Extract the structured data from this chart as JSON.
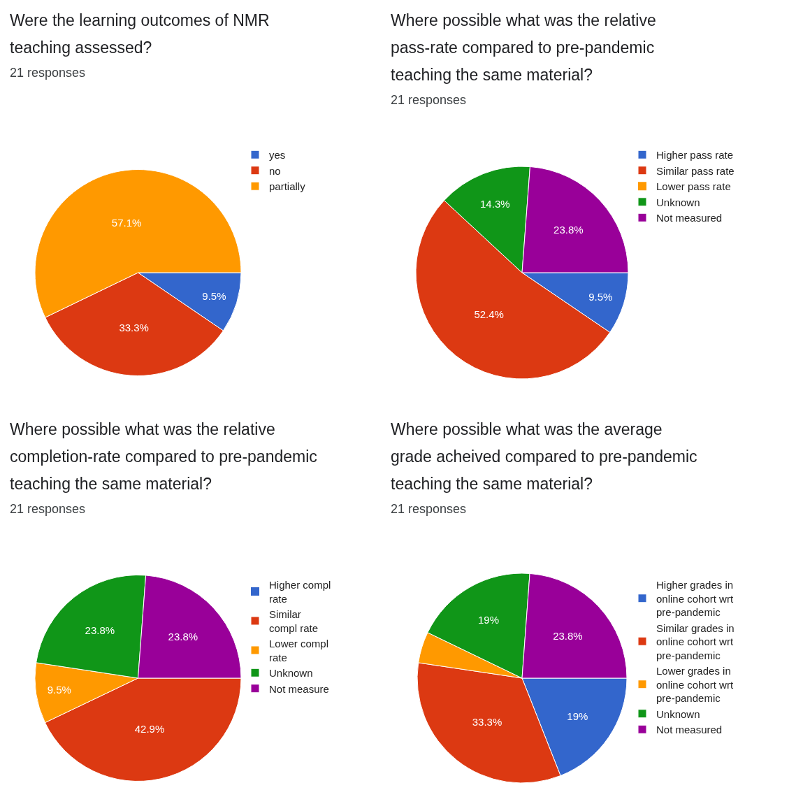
{
  "chart_data": [
    {
      "type": "pie",
      "title": "Were the learning outcomes of NMR teaching assessed?",
      "subtitle": "21 responses",
      "categories": [
        "yes",
        "no",
        "partially"
      ],
      "values": [
        9.5,
        33.3,
        57.1
      ],
      "colors": [
        "#3366cc",
        "#dc3912",
        "#ff9900"
      ],
      "value_labels": [
        "9.5%",
        "33.3%",
        "57.1%"
      ],
      "legend": "right"
    },
    {
      "type": "pie",
      "title": "Where possible what was the relative pass-rate compared to pre-pandemic teaching the same material?",
      "subtitle": "21 responses",
      "categories": [
        "Higher pass rate",
        "Similar pass rate",
        "Lower pass rate",
        "Unknown",
        "Not measured"
      ],
      "values": [
        9.5,
        52.4,
        0,
        14.3,
        23.8
      ],
      "colors": [
        "#3366cc",
        "#dc3912",
        "#ff9900",
        "#109618",
        "#990099"
      ],
      "value_labels": [
        "9.5%",
        "52.4%",
        null,
        "14.3%",
        "23.8%"
      ],
      "legend": "right"
    },
    {
      "type": "pie",
      "title": "Where possible what was the relative completion-rate compared to pre-pandemic teaching the same material?",
      "subtitle": "21 responses",
      "categories": [
        "Higher compl rate",
        "Similar compl rate",
        "Lower compl rate",
        "Unknown",
        "Not measure"
      ],
      "values": [
        0,
        42.9,
        9.5,
        23.8,
        23.8
      ],
      "colors": [
        "#3366cc",
        "#dc3912",
        "#ff9900",
        "#109618",
        "#990099"
      ],
      "value_labels": [
        null,
        "42.9%",
        "9.5%",
        "23.8%",
        "23.8%"
      ],
      "legend": "right"
    },
    {
      "type": "pie",
      "title": "Where possible what was the average grade acheived compared to pre-pandemic teaching the same material?",
      "subtitle": "21 responses",
      "categories": [
        "Higher grades in online cohort wrt pre-pandemic",
        "Similar grades in online cohort wrt pre-pandemic",
        "Lower grades in online cohort wrt pre-pandemic",
        "Unknown",
        "Not measured"
      ],
      "values": [
        19,
        33.3,
        4.8,
        19,
        23.8
      ],
      "colors": [
        "#3366cc",
        "#dc3912",
        "#ff9900",
        "#109618",
        "#990099"
      ],
      "value_labels": [
        "19%",
        "33.3%",
        null,
        "19%",
        "23.8%"
      ],
      "legend": "right"
    }
  ]
}
